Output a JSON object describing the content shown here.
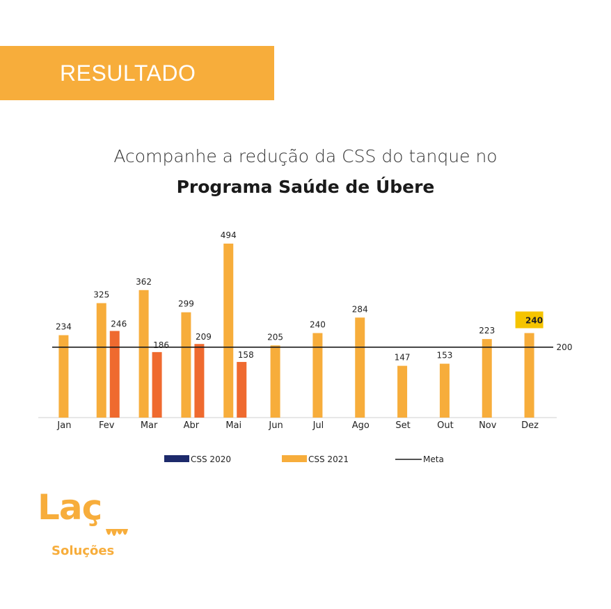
{
  "header": {
    "banner_label": "RESULTADO",
    "subtitle": "Acompanhe a redução da CSS do tanque no",
    "title": "Programa Saúde de Úbere"
  },
  "chart_data": {
    "type": "bar",
    "categories": [
      "Jan",
      "Fev",
      "Mar",
      "Abr",
      "Mai",
      "Jun",
      "Jul",
      "Ago",
      "Set",
      "Out",
      "Nov",
      "Dez"
    ],
    "series": [
      {
        "name": "CSS 2021",
        "color": "#f7ad3b",
        "values": [
          234,
          325,
          362,
          299,
          494,
          205,
          240,
          284,
          147,
          153,
          223,
          240
        ]
      },
      {
        "name": "CSS 2020",
        "color": "#ef6a2f",
        "values": [
          null,
          246,
          186,
          209,
          158,
          null,
          null,
          null,
          null,
          null,
          null,
          null
        ]
      }
    ],
    "reference_line": {
      "name": "Meta",
      "value": 200,
      "label": "200",
      "color": "#1a1a1a"
    },
    "highlight": {
      "category": "Dez",
      "series": "CSS 2021",
      "label": "240",
      "color": "#f5c400"
    },
    "legend": [
      {
        "label": "CSS 2020",
        "color": "#1d2a6b",
        "kind": "bar"
      },
      {
        "label": "CSS 2021",
        "color": "#f7ad3b",
        "kind": "bar"
      },
      {
        "label": "Meta",
        "color": "#1a1a1a",
        "kind": "line"
      }
    ],
    "ylim": [
      0,
      500
    ],
    "legend_position": "bottom",
    "grid": false
  },
  "logo": {
    "mark": "Laç",
    "sub": "Soluções",
    "color": "#f7ad3b"
  }
}
